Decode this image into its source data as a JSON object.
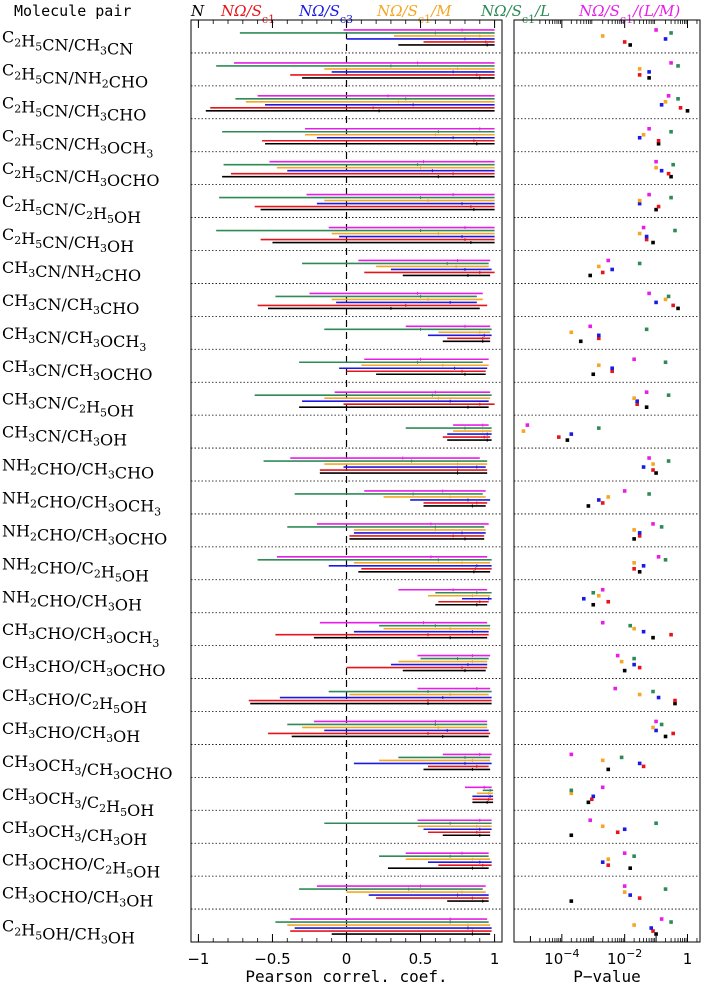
{
  "header": {
    "molecule_pair_label": "Molecule pair"
  },
  "chart_data": [
    {
      "type": "errorbar",
      "xlabel": "Pearson correl. coef.",
      "xlim": [
        -1.05,
        1.05
      ],
      "xticks": [
        -1,
        -0.5,
        0,
        0.5,
        1
      ],
      "xticklabels": [
        "−1",
        "−0.5",
        "0",
        "0.5",
        "1"
      ],
      "reference_line": {
        "x": 0,
        "style": "dashed"
      },
      "series": [
        {
          "name": "N",
          "color": "#000000"
        },
        {
          "name": "NΩ/Sc1",
          "color": "#e8141c"
        },
        {
          "name": "NΩ/Sc3",
          "color": "#1a1ae6"
        },
        {
          "name": "NΩ/Sc1/M",
          "color": "#f5a623"
        },
        {
          "name": "NΩ/Sc1/L",
          "color": "#2e8b57"
        },
        {
          "name": "NΩ/Sc1/(L/M)",
          "color": "#e81ee8"
        }
      ],
      "categories": [
        "C2H5CN/CH3CN",
        "C2H5CN/NH2CHO",
        "C2H5CN/CH3CHO",
        "C2H5CN/CH3OCH3",
        "C2H5CN/CH3OCHO",
        "C2H5CN/C2H5OH",
        "C2H5CN/CH3OH",
        "CH3CN/NH2CHO",
        "CH3CN/CH3CHO",
        "CH3CN/CH3OCH3",
        "CH3CN/CH3OCHO",
        "CH3CN/C2H5OH",
        "CH3CN/CH3OH",
        "NH2CHO/CH3CHO",
        "NH2CHO/CH3OCH3",
        "NH2CHO/CH3OCHO",
        "NH2CHO/C2H5OH",
        "NH2CHO/CH3OH",
        "CH3CHO/CH3OCH3",
        "CH3CHO/CH3OCHO",
        "CH3CHO/C2H5OH",
        "CH3CHO/CH3OH",
        "CH3OCH3/CH3OCHO",
        "CH3OCH3/C2H5OH",
        "CH3OCH3/CH3OH",
        "CH3OCHO/C2H5OH",
        "CH3OCHO/CH3OH",
        "C2H5OH/CH3OH"
      ],
      "intervals": [
        [
          [
            0.35,
            1.0,
            0.95
          ],
          [
            0.52,
            1.0,
            0.94
          ],
          [
            0.0,
            1.0,
            0.8
          ],
          [
            0.32,
            1.0,
            0.9
          ],
          [
            -0.72,
            1.0,
            0.6
          ],
          [
            -0.02,
            1.0,
            0.78
          ]
        ],
        [
          [
            -0.3,
            1.0,
            0.9
          ],
          [
            -0.38,
            1.0,
            0.88
          ],
          [
            -0.1,
            1.0,
            0.72
          ],
          [
            -0.15,
            1.0,
            0.75
          ],
          [
            -0.88,
            1.0,
            0.3
          ],
          [
            -0.76,
            1.0,
            0.48
          ]
        ],
        [
          [
            -0.95,
            1.0,
            0.22
          ],
          [
            -0.92,
            1.0,
            0.18
          ],
          [
            -0.55,
            1.0,
            0.45
          ],
          [
            -0.68,
            1.0,
            0.35
          ],
          [
            -0.75,
            1.0,
            0.4
          ],
          [
            -0.6,
            1.0,
            0.28
          ]
        ],
        [
          [
            -0.55,
            1.0,
            0.88
          ],
          [
            -0.57,
            1.0,
            0.86
          ],
          [
            -0.2,
            1.0,
            0.72
          ],
          [
            -0.28,
            1.0,
            0.6
          ],
          [
            -0.84,
            1.0,
            0.62
          ],
          [
            -0.28,
            1.0,
            0.9
          ]
        ],
        [
          [
            -0.84,
            1.0,
            0.62
          ],
          [
            -0.78,
            1.0,
            0.72
          ],
          [
            -0.4,
            1.0,
            0.58
          ],
          [
            -0.47,
            1.0,
            0.5
          ],
          [
            -0.83,
            1.0,
            0.48
          ],
          [
            -0.52,
            1.0,
            0.52
          ]
        ],
        [
          [
            -0.58,
            1.0,
            0.86
          ],
          [
            -0.62,
            1.0,
            0.84
          ],
          [
            -0.2,
            1.0,
            0.78
          ],
          [
            -0.15,
            1.0,
            0.55
          ],
          [
            -0.86,
            1.0,
            0.5
          ],
          [
            -0.27,
            1.0,
            0.72
          ]
        ],
        [
          [
            -0.5,
            1.0,
            0.84
          ],
          [
            -0.58,
            1.0,
            0.8
          ],
          [
            -0.05,
            1.0,
            0.78
          ],
          [
            -0.1,
            1.0,
            0.62
          ],
          [
            -0.88,
            1.0,
            0.5
          ],
          [
            -0.12,
            1.0,
            0.8
          ]
        ],
        [
          [
            0.38,
            0.97,
            0.82
          ],
          [
            0.12,
            1.0,
            0.9
          ],
          [
            0.3,
            0.98,
            0.8
          ],
          [
            0.2,
            0.96,
            0.74
          ],
          [
            -0.3,
            0.96,
            0.68
          ],
          [
            0.08,
            0.97,
            0.75
          ]
        ],
        [
          [
            -0.53,
            0.9,
            0.3
          ],
          [
            -0.6,
            0.95,
            0.4
          ],
          [
            -0.07,
            0.88,
            0.7
          ],
          [
            -0.1,
            0.92,
            0.55
          ],
          [
            -0.48,
            0.88,
            0.5
          ],
          [
            -0.25,
            0.92,
            0.48
          ]
        ],
        [
          [
            0.65,
            0.97,
            0.92
          ],
          [
            0.68,
            0.97,
            0.92
          ],
          [
            0.55,
            0.98,
            0.93
          ],
          [
            0.62,
            0.97,
            0.9
          ],
          [
            -0.15,
            0.98,
            0.5
          ],
          [
            0.4,
            0.97,
            0.8
          ]
        ],
        [
          [
            0.2,
            0.94,
            0.8
          ],
          [
            0.0,
            0.94,
            0.78
          ],
          [
            -0.05,
            0.95,
            0.73
          ],
          [
            0.1,
            0.96,
            0.65
          ],
          [
            -0.32,
            0.92,
            0.48
          ],
          [
            0.12,
            0.96,
            0.5
          ]
        ],
        [
          [
            -0.32,
            0.96,
            0.82
          ],
          [
            -0.02,
            1.0,
            0.9
          ],
          [
            -0.3,
            0.96,
            0.7
          ],
          [
            -0.15,
            0.97,
            0.62
          ],
          [
            -0.62,
            0.98,
            0.58
          ],
          [
            -0.08,
            0.97,
            0.6
          ]
        ],
        [
          [
            0.68,
            0.98,
            0.95
          ],
          [
            0.65,
            0.97,
            0.93
          ],
          [
            0.68,
            0.98,
            0.95
          ],
          [
            0.72,
            0.98,
            0.92
          ],
          [
            0.4,
            0.98,
            0.8
          ],
          [
            0.72,
            0.96,
            0.92
          ]
        ],
        [
          [
            -0.18,
            0.95,
            0.75
          ],
          [
            -0.18,
            0.95,
            0.75
          ],
          [
            -0.02,
            0.94,
            0.88
          ],
          [
            -0.15,
            0.95,
            0.75
          ],
          [
            -0.56,
            0.95,
            0.44
          ],
          [
            -0.38,
            0.9,
            0.38
          ]
        ],
        [
          [
            0.52,
            0.94,
            0.85
          ],
          [
            0.52,
            0.95,
            0.88
          ],
          [
            0.43,
            0.97,
            0.82
          ],
          [
            0.25,
            0.94,
            0.7
          ],
          [
            -0.35,
            0.92,
            0.45
          ],
          [
            0.12,
            0.94,
            0.65
          ]
        ],
        [
          [
            0.02,
            0.93,
            0.8
          ],
          [
            0.02,
            0.93,
            0.72
          ],
          [
            0.05,
            0.94,
            0.78
          ],
          [
            0.05,
            0.94,
            0.6
          ],
          [
            -0.4,
            0.93,
            0.6
          ],
          [
            -0.2,
            0.96,
            0.57
          ]
        ],
        [
          [
            0.08,
            0.97,
            0.86
          ],
          [
            0.1,
            0.98,
            0.87
          ],
          [
            -0.12,
            0.98,
            0.88
          ],
          [
            0.05,
            0.97,
            0.78
          ],
          [
            -0.6,
            0.98,
            0.62
          ],
          [
            -0.47,
            0.95,
            0.57
          ]
        ],
        [
          [
            0.6,
            0.95,
            0.88
          ],
          [
            0.62,
            0.96,
            0.9
          ],
          [
            0.78,
            0.98,
            0.96
          ],
          [
            0.55,
            0.97,
            0.85
          ],
          [
            0.6,
            0.98,
            0.88
          ],
          [
            0.35,
            0.95,
            0.72
          ]
        ],
        [
          [
            -0.22,
            0.95,
            0.7
          ],
          [
            -0.48,
            0.96,
            0.55
          ],
          [
            0.05,
            0.96,
            0.85
          ],
          [
            0.25,
            0.97,
            0.7
          ],
          [
            0.22,
            0.97,
            0.6
          ],
          [
            -0.18,
            0.95,
            0.52
          ]
        ],
        [
          [
            0.38,
            0.94,
            0.8
          ],
          [
            0.0,
            0.95,
            0.78
          ],
          [
            0.3,
            0.95,
            0.82
          ],
          [
            0.35,
            0.95,
            0.85
          ],
          [
            0.5,
            0.96,
            0.75
          ],
          [
            0.48,
            0.97,
            0.85
          ]
        ],
        [
          [
            -0.65,
            0.98,
            0.55
          ],
          [
            -0.66,
            0.98,
            0.55
          ],
          [
            -0.45,
            0.98,
            0.65
          ],
          [
            0.02,
            0.96,
            0.7
          ],
          [
            -0.12,
            0.98,
            0.55
          ],
          [
            0.48,
            0.97,
            0.88
          ]
        ],
        [
          [
            -0.37,
            0.96,
            0.65
          ],
          [
            -0.53,
            0.97,
            0.55
          ],
          [
            -0.15,
            0.96,
            0.68
          ],
          [
            -0.3,
            0.95,
            0.62
          ],
          [
            -0.4,
            0.95,
            0.6
          ],
          [
            -0.22,
            0.95,
            0.6
          ]
        ],
        [
          [
            0.52,
            0.97,
            0.85
          ],
          [
            0.55,
            0.96,
            0.88
          ],
          [
            0.05,
            0.98,
            0.8
          ],
          [
            0.22,
            0.97,
            0.85
          ],
          [
            0.35,
            0.97,
            0.8
          ],
          [
            0.65,
            0.98,
            0.9
          ]
        ],
        [
          [
            0.85,
            0.99,
            0.95
          ],
          [
            0.85,
            0.99,
            0.96
          ],
          [
            0.85,
            0.99,
            0.97
          ],
          [
            0.88,
            0.99,
            0.96
          ],
          [
            0.92,
            0.99,
            0.97
          ],
          [
            0.8,
            0.98,
            0.93
          ]
        ],
        [
          [
            0.65,
            0.97,
            0.9
          ],
          [
            0.55,
            0.97,
            0.88
          ],
          [
            0.52,
            0.98,
            0.9
          ],
          [
            0.48,
            0.98,
            0.88
          ],
          [
            -0.15,
            0.98,
            0.7
          ],
          [
            0.48,
            0.98,
            0.9
          ]
        ],
        [
          [
            0.28,
            0.96,
            0.85
          ],
          [
            0.62,
            0.98,
            0.92
          ],
          [
            0.55,
            0.98,
            0.9
          ],
          [
            0.4,
            0.97,
            0.85
          ],
          [
            0.22,
            0.96,
            0.7
          ],
          [
            0.4,
            0.96,
            0.78
          ]
        ],
        [
          [
            0.68,
            0.96,
            0.92
          ],
          [
            0.2,
            0.96,
            0.85
          ],
          [
            0.15,
            0.96,
            0.75
          ],
          [
            0.0,
            0.94,
            0.78
          ],
          [
            -0.32,
            0.92,
            0.42
          ],
          [
            -0.2,
            0.94,
            0.5
          ]
        ],
        [
          [
            -0.1,
            0.97,
            0.85
          ],
          [
            -0.38,
            0.98,
            0.85
          ],
          [
            -0.35,
            0.98,
            0.82
          ],
          [
            -0.4,
            0.97,
            0.82
          ],
          [
            -0.48,
            0.96,
            0.7
          ],
          [
            -0.38,
            0.95,
            0.7
          ]
        ]
      ]
    },
    {
      "type": "scatter",
      "xlabel": "P−value",
      "xscale": "log",
      "xlim": [
        3e-06,
        2.5
      ],
      "xticks": [
        0.0001,
        0.01,
        1
      ],
      "xticklabels": [
        "10",
        "10",
        "1"
      ],
      "xtick_exponents": [
        "−4",
        "−2",
        ""
      ],
      "pvalues": [
        [
          0.015,
          0.01,
          0.2,
          0.002,
          0.3,
          0.1
        ],
        [
          0.06,
          0.03,
          0.06,
          0.03,
          0.5,
          0.3
        ],
        [
          1.0,
          0.6,
          0.15,
          0.2,
          0.5,
          0.25
        ],
        [
          0.12,
          0.12,
          0.03,
          0.04,
          0.3,
          0.06
        ],
        [
          0.3,
          0.25,
          0.15,
          0.1,
          0.35,
          0.1
        ],
        [
          0.1,
          0.12,
          0.03,
          0.03,
          0.3,
          0.06
        ],
        [
          0.08,
          0.05,
          0.05,
          0.03,
          0.4,
          0.04
        ],
        [
          0.0008,
          0.002,
          0.004,
          0.0015,
          0.03,
          0.003
        ],
        [
          0.5,
          0.35,
          0.1,
          0.2,
          0.25,
          0.06
        ],
        [
          0.0004,
          0.0015,
          0.0015,
          0.0002,
          0.05,
          0.0008
        ],
        [
          0.001,
          0.004,
          0.004,
          0.0015,
          0.2,
          0.02
        ],
        [
          0.05,
          0.025,
          0.025,
          0.02,
          0.25,
          0.05
        ],
        [
          0.00015,
          8e-05,
          0.0002,
          6e-06,
          0.0015,
          8e-06
        ],
        [
          0.1,
          0.08,
          0.04,
          0.08,
          0.25,
          0.06
        ],
        [
          0.0007,
          0.002,
          0.0015,
          0.003,
          0.06,
          0.01
        ],
        [
          0.02,
          0.03,
          0.03,
          0.02,
          0.15,
          0.08
        ],
        [
          0.03,
          0.02,
          0.04,
          0.02,
          0.2,
          0.12
        ],
        [
          0.001,
          0.003,
          0.0005,
          0.0015,
          0.001,
          0.002
        ],
        [
          0.08,
          0.3,
          0.04,
          0.02,
          0.015,
          0.002
        ],
        [
          0.01,
          0.03,
          0.02,
          0.008,
          0.02,
          0.006
        ],
        [
          0.4,
          0.4,
          0.12,
          0.03,
          0.08,
          0.005
        ],
        [
          0.2,
          0.35,
          0.1,
          0.08,
          0.15,
          0.1
        ],
        [
          0.003,
          0.04,
          0.03,
          0.002,
          0.008,
          0.0002
        ],
        [
          0.0007,
          0.0009,
          0.001,
          0.0002,
          0.0002,
          0.002
        ],
        [
          0.0002,
          0.006,
          0.01,
          0.002,
          0.1,
          0.0008
        ],
        [
          0.015,
          0.003,
          0.002,
          0.003,
          0.02,
          0.01
        ],
        [
          0.0002,
          0.03,
          0.015,
          0.01,
          0.2,
          0.01
        ],
        [
          0.1,
          0.08,
          0.07,
          0.02,
          0.3,
          0.15
        ]
      ]
    }
  ]
}
